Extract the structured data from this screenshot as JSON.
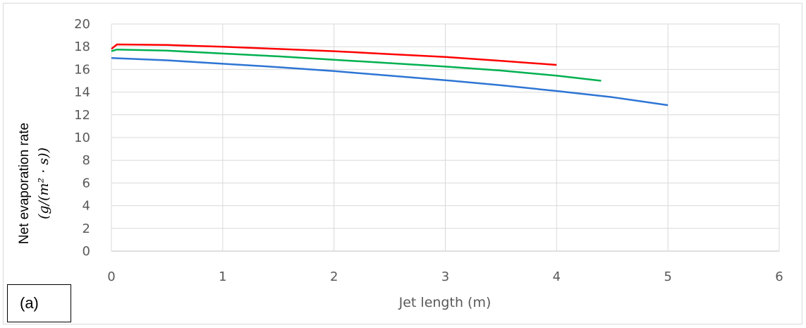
{
  "chart_data": {
    "type": "line",
    "title": "",
    "xlabel": "Jet length (m)",
    "ylabel": "Net evaporation rate",
    "ylabel_unit": "(g/(m² · s))",
    "xlim": [
      0,
      6
    ],
    "ylim": [
      0,
      20
    ],
    "xticks": [
      "0",
      "1",
      "2",
      "3",
      "4",
      "5",
      "6"
    ],
    "yticks": [
      "0",
      "2",
      "4",
      "6",
      "8",
      "10",
      "12",
      "14",
      "16",
      "18",
      "20"
    ],
    "grid": true,
    "legend": "none",
    "panel_label": "(a)",
    "series": [
      {
        "color": "#ff0000",
        "x": [
          0.0,
          0.05,
          0.5,
          1.0,
          1.5,
          2.0,
          2.5,
          3.0,
          3.5,
          4.0
        ],
        "y": [
          17.8,
          18.2,
          18.15,
          18.0,
          17.8,
          17.6,
          17.35,
          17.1,
          16.75,
          16.4
        ]
      },
      {
        "color": "#00b050",
        "x": [
          0.0,
          0.05,
          0.5,
          1.0,
          1.5,
          2.0,
          2.5,
          3.0,
          3.5,
          4.0,
          4.4
        ],
        "y": [
          17.6,
          17.75,
          17.65,
          17.4,
          17.15,
          16.85,
          16.55,
          16.25,
          15.9,
          15.45,
          15.0
        ]
      },
      {
        "color": "#2e75d4",
        "x": [
          0.0,
          0.5,
          1.0,
          1.5,
          2.0,
          2.5,
          3.0,
          3.5,
          4.0,
          4.5,
          5.0
        ],
        "y": [
          17.0,
          16.8,
          16.5,
          16.2,
          15.85,
          15.45,
          15.05,
          14.6,
          14.1,
          13.55,
          12.85
        ]
      }
    ]
  }
}
